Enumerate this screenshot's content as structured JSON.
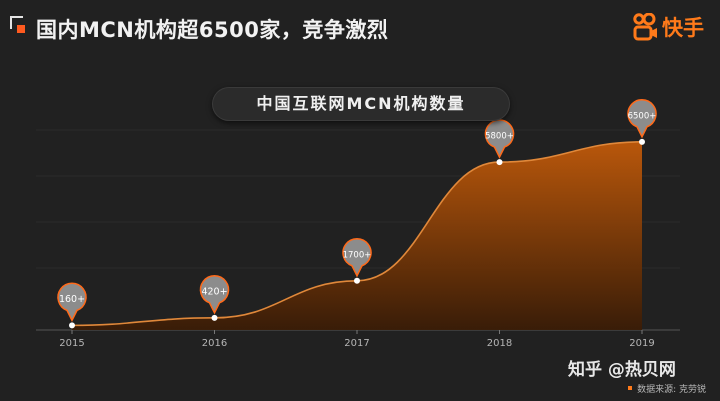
{
  "header": {
    "title": "国内MCN机构超6500家，竞争激烈",
    "logo_text": "快手",
    "logo_icon": "kuaishou-logo-icon",
    "accent_color": "#ff5a1f"
  },
  "chart_data": {
    "type": "area",
    "title": "中国互联网MCN机构数量",
    "x": [
      "2015",
      "2016",
      "2017",
      "2018",
      "2019"
    ],
    "values": [
      160,
      420,
      1700,
      5800,
      6500
    ],
    "labels": [
      "160+",
      "420+",
      "1700+",
      "5800+",
      "6500+"
    ],
    "ylim": [
      0,
      7600
    ],
    "grid": false,
    "fill_color": "#c15a0a",
    "line_color": "#e0883a",
    "marker_color": "#8a8a8a"
  },
  "footer": {
    "watermark": "知乎 @热贝网",
    "source": "数据来源: 克劳锐"
  }
}
